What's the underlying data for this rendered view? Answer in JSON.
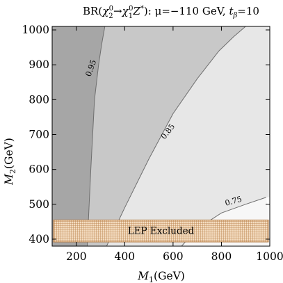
{
  "chart_data": {
    "type": "contour",
    "title_parts": {
      "prefix": "BR(",
      "chi": "χ",
      "sub_2": "2",
      "sub_1": "1",
      "sup_0": "0",
      "arrow": "→",
      "z": "Z",
      "star": "*",
      "mu_part": "): μ=−110 GeV, ",
      "t": "t",
      "beta": "β",
      "tb_value": "=10"
    },
    "xlabel": {
      "main": "M",
      "sub": "1",
      "unit": "(GeV)"
    },
    "ylabel": {
      "main": "M",
      "sub": "2",
      "unit": "(GeV)"
    },
    "xlim": [
      100,
      1000
    ],
    "ylim": [
      380,
      1010
    ],
    "x_ticks": [
      200,
      400,
      600,
      800,
      1000
    ],
    "y_ticks": [
      400,
      500,
      600,
      700,
      800,
      900,
      1000
    ],
    "region_colors": [
      "#a6a6a6",
      "#c8c8c8",
      "#e7e7e7",
      "#f7f7f7"
    ],
    "contours": [
      {
        "level": "0.95",
        "points": [
          [
            245,
            380
          ],
          [
            260,
            600
          ],
          [
            275,
            800
          ],
          [
            292,
            900
          ],
          [
            305,
            960
          ],
          [
            318,
            1010
          ]
        ],
        "label_at": [
          262,
          890
        ],
        "label_angle": -70
      },
      {
        "level": "0.85",
        "points": [
          [
            325,
            380
          ],
          [
            400,
            490
          ],
          [
            500,
            630
          ],
          [
            600,
            760
          ],
          [
            700,
            860
          ],
          [
            790,
            940
          ],
          [
            850,
            980
          ],
          [
            900,
            1010
          ]
        ],
        "label_at": [
          580,
          708
        ],
        "label_angle": -52
      },
      {
        "level": "0.75",
        "points": [
          [
            635,
            380
          ],
          [
            700,
            430
          ],
          [
            800,
            475
          ],
          [
            900,
            500
          ],
          [
            985,
            520
          ]
        ],
        "label_at": [
          850,
          508
        ],
        "label_angle": -16
      }
    ],
    "lep_excluded": {
      "label": "LEP Excluded",
      "x_range": [
        100,
        1000
      ],
      "y_range": [
        392,
        455
      ],
      "color": "#b5793f"
    }
  }
}
